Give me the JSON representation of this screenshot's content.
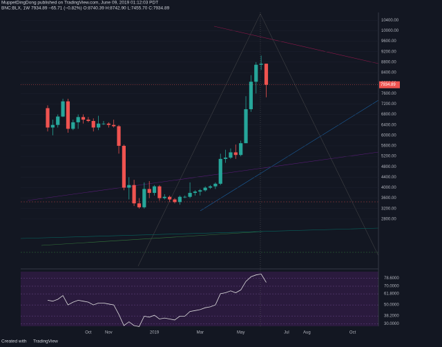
{
  "chart_data": {
    "type": "candlestick",
    "title": "MuppetDingDong published on TradingView.com, June 09, 2019 01:12:03 PDT",
    "subtitle": "BNC:BLX, 1W 7934.89 −65.71 (−0.82%) O:8740.39 H:8742.90 L:7455.70 C:7934.89",
    "footer_prefix": "Created with",
    "footer_brand": "TradingView",
    "categories": [
      null,
      null,
      null,
      null,
      null,
      null,
      null,
      null,
      "Oct",
      null,
      null,
      null,
      "Nov",
      null,
      null,
      null,
      null,
      null,
      null,
      null,
      null,
      "2019",
      null,
      null,
      null,
      null,
      null,
      null,
      null,
      null,
      "Mar",
      null,
      null,
      null,
      null,
      null,
      null,
      null,
      "May",
      null,
      null,
      null,
      null,
      null,
      null,
      null,
      null,
      "Jul",
      null,
      null,
      null,
      "Aug",
      null,
      null,
      null,
      null,
      null,
      null,
      null,
      null,
      "Oct",
      null
    ],
    "open": [
      7040,
      6300,
      6400,
      6720,
      7300,
      6250,
      6500,
      6700,
      6600,
      6550,
      6300,
      6450,
      6450,
      6400,
      6350,
      5600,
      4000,
      4100,
      3400,
      3250,
      3950,
      3800,
      4050,
      3600,
      3650,
      3550,
      3450,
      3650,
      3650,
      3800,
      3850,
      3900,
      4000,
      4050,
      4150,
      5100,
      5150,
      5350,
      5250,
      5700,
      7000,
      8050,
      8700,
      8740.39,
      null,
      null,
      null,
      null,
      null,
      null,
      null,
      null,
      null,
      null,
      null,
      null,
      null,
      null,
      null,
      null,
      null,
      null
    ],
    "high": [
      7150,
      6600,
      6800,
      7400,
      7400,
      6600,
      6800,
      6800,
      6700,
      6650,
      6750,
      6550,
      6500,
      6600,
      6400,
      5650,
      4400,
      4300,
      3600,
      4200,
      4250,
      4100,
      4100,
      3750,
      3700,
      3600,
      3700,
      3700,
      4200,
      3900,
      3950,
      4050,
      4100,
      4200,
      5300,
      5450,
      5500,
      5650,
      5800,
      7500,
      8300,
      8800,
      9050,
      8742.9,
      null,
      null,
      null,
      null,
      null,
      null,
      null,
      null,
      null,
      null,
      null,
      null,
      null,
      null,
      null,
      null,
      null,
      null
    ],
    "low": [
      6150,
      6000,
      6300,
      6700,
      6100,
      6200,
      6250,
      6450,
      6500,
      6150,
      6200,
      6400,
      6300,
      6300,
      5300,
      3900,
      3550,
      3300,
      3200,
      3200,
      3600,
      3700,
      3500,
      3550,
      3450,
      3400,
      3350,
      3600,
      3600,
      3700,
      3700,
      3850,
      3950,
      3950,
      4100,
      4950,
      5100,
      5100,
      5200,
      5700,
      6900,
      7600,
      8500,
      7455.7,
      null,
      null,
      null,
      null,
      null,
      null,
      null,
      null,
      null,
      null,
      null,
      null,
      null,
      null,
      null,
      null,
      null,
      null
    ],
    "close": [
      6300,
      6400,
      6720,
      7300,
      6250,
      6500,
      6700,
      6600,
      6550,
      6300,
      6450,
      6450,
      6400,
      6350,
      5600,
      4000,
      4100,
      3400,
      3250,
      3950,
      3800,
      4050,
      3600,
      3650,
      3550,
      3450,
      3650,
      3650,
      3800,
      3850,
      3900,
      4000,
      4050,
      4150,
      5100,
      5150,
      5350,
      5250,
      5700,
      7000,
      8050,
      8700,
      8740.39,
      7934.89,
      null,
      null,
      null,
      null,
      null,
      null,
      null,
      null,
      null,
      null,
      null,
      null,
      null,
      null,
      null,
      null,
      null,
      null
    ],
    "up_color": "#26a69a",
    "down_color": "#ef5350",
    "ylim": [
      1000,
      10700
    ],
    "yticks": [
      {
        "value": 2800,
        "label": "2800.00"
      },
      {
        "value": 3200,
        "label": "3200.00"
      },
      {
        "value": 3600,
        "label": "3600.00"
      },
      {
        "value": 4000,
        "label": "4000.00"
      },
      {
        "value": 4400,
        "label": "4400.00"
      },
      {
        "value": 4800,
        "label": "4800.00"
      },
      {
        "value": 5200,
        "label": "5200.00"
      },
      {
        "value": 5600,
        "label": "5600.00"
      },
      {
        "value": 6000,
        "label": "6000.00"
      },
      {
        "value": 6400,
        "label": "6400.00"
      },
      {
        "value": 6800,
        "label": "6800.00"
      },
      {
        "value": 7200,
        "label": "7200.00"
      },
      {
        "value": 7600,
        "label": "7600.00"
      },
      {
        "value": 8000,
        "label": "8000.00"
      },
      {
        "value": 8400,
        "label": "8400.00"
      },
      {
        "value": 8800,
        "label": "8800.00"
      },
      {
        "value": 9200,
        "label": "9200.00"
      },
      {
        "value": 9600,
        "label": "9600.00"
      },
      {
        "value": 10000,
        "label": "10000.00"
      },
      {
        "value": 10400,
        "label": "10400.00"
      }
    ],
    "rsi": {
      "values": [
        55,
        54,
        56,
        60,
        50,
        53,
        55,
        54,
        53,
        50,
        52,
        52,
        51,
        50,
        40,
        28,
        32,
        28,
        27,
        38,
        37,
        39,
        35,
        36,
        35,
        34,
        38,
        38,
        43,
        44,
        45,
        47,
        48,
        50,
        62,
        63,
        65,
        63,
        66,
        75,
        80,
        82,
        83,
        74,
        null,
        null,
        null,
        null,
        null,
        null,
        null,
        null,
        null,
        null,
        null,
        null,
        null,
        null,
        null,
        null,
        null,
        null
      ],
      "color": "#e0e0e0",
      "ylim": [
        28,
        84
      ],
      "yticks": [
        {
          "value": 30,
          "label": "30.0000"
        },
        {
          "value": 38.2,
          "label": "38.2000"
        },
        {
          "value": 50,
          "label": "50.0000"
        },
        {
          "value": 61.8,
          "label": "61.8000"
        },
        {
          "value": 70,
          "label": "70.0000"
        },
        {
          "value": 78.6,
          "label": "78.6000"
        }
      ]
    }
  }
}
